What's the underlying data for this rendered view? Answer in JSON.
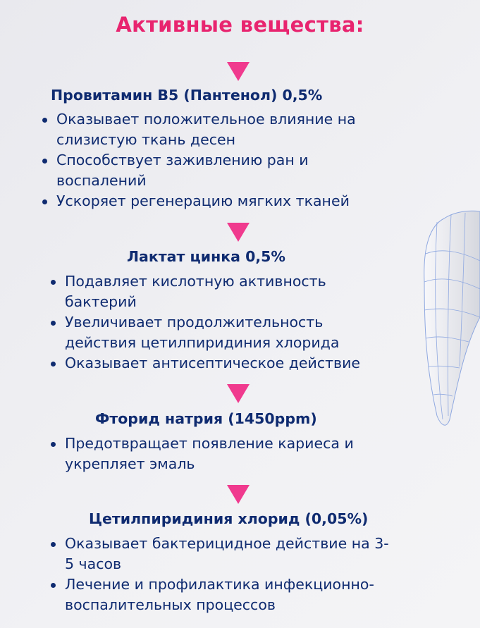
{
  "title": "Активные вещества:",
  "colors": {
    "title": "#e8246f",
    "arrow": "#f03a8e",
    "text": "#0f2b70",
    "tooth_mesh": "#8fa8e0"
  },
  "sections": [
    {
      "heading": "Провитамин В5 (Пантенол) 0,5%",
      "bullets": [
        [
          "Оказывает положительное влияние на",
          "слизистую ткань десен"
        ],
        [
          "Способствует заживлению ран и",
          "воспалений"
        ],
        [
          "Ускоряет регенерацию мягких тканей"
        ]
      ]
    },
    {
      "heading": "Лактат цинка 0,5%",
      "bullets": [
        [
          "Подавляет кислотную активность",
          "бактерий"
        ],
        [
          "Увеличивает продолжительность",
          "действия цетилпиридиния хлорида"
        ],
        [
          "Оказывает антисептическое действие"
        ]
      ]
    },
    {
      "heading": "Фторид натрия (1450ppm)",
      "bullets": [
        [
          "Предотвращает появление кариеса и",
          "укрепляет эмаль"
        ]
      ]
    },
    {
      "heading": "Цетилпиридиния хлорид  (0,05%)",
      "bullets": [
        [
          "Оказывает бактерицидное действие на 3-",
          "5 часов"
        ],
        [
          "Лечение и профилактика инфекционно-",
          "воспалительных процессов"
        ]
      ]
    }
  ]
}
